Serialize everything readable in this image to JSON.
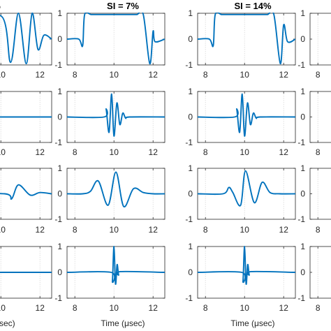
{
  "chart_data": {
    "type": "line",
    "layout": "4 rows x 4 columns of line plots (cropped at left and right)",
    "color": "#0072BD",
    "column_titles": [
      "%",
      "SI = 7%",
      "SI = 14%",
      ""
    ],
    "xlabel": "Time (μsec)",
    "xlabel_partial": "sec)",
    "xticks": [
      8,
      10,
      12
    ],
    "xlim": [
      7.6,
      12.6
    ],
    "yticks": [
      -1,
      0,
      1
    ],
    "ylim": [
      -1,
      1
    ],
    "grid": "vertical dotted lines at x ticks",
    "rows": [
      {
        "row": 1,
        "description": "long sinusoidal burst with unit amplitude",
        "panels": [
          {
            "column": "partial-left",
            "x": [
              8.0,
              10.0,
              10.5,
              10.9,
              11.3,
              11.6,
              11.9,
              12.2,
              12.6
            ],
            "y": [
              0,
              0.9,
              -0.9,
              1.0,
              -0.95,
              1.0,
              -0.4,
              0.15,
              0
            ]
          },
          {
            "column": "SI = 7%",
            "x": [
              7.6,
              8.2,
              8.4,
              8.5,
              8.83,
              9.17,
              9.5,
              9.83,
              10.17,
              10.5,
              10.83,
              11.17,
              11.5,
              11.83,
              12.0,
              12.1,
              12.6
            ],
            "y": [
              0,
              0,
              -0.25,
              0.95,
              0.95,
              0.95,
              0.95,
              0.95,
              0.95,
              0.95,
              0.95,
              0.95,
              0.95,
              -0.95,
              0.3,
              -0.1,
              0
            ]
          },
          {
            "column": "SI = 14%",
            "x": [
              7.6,
              8.2,
              8.4,
              8.5,
              8.83,
              9.17,
              9.5,
              9.83,
              10.17,
              10.5,
              10.83,
              11.17,
              11.5,
              11.83,
              12.0,
              12.2,
              12.6
            ],
            "y": [
              0,
              0,
              -0.25,
              0.95,
              0.95,
              0.95,
              0.95,
              0.95,
              0.95,
              0.95,
              0.95,
              0.95,
              0.95,
              -0.95,
              0.55,
              -0.1,
              0
            ]
          }
        ]
      },
      {
        "row": 2,
        "description": "short wavelet centred near 10 μsec",
        "panels": [
          {
            "column": "partial-left",
            "x": [
              7.6,
              12.6
            ],
            "y": [
              0,
              0
            ]
          },
          {
            "column": "SI = 7%",
            "x": [
              7.6,
              9.5,
              9.6,
              9.75,
              9.88,
              10.0,
              10.15,
              10.3,
              10.45,
              10.6,
              10.8,
              12.6
            ],
            "y": [
              0,
              0,
              0.3,
              -0.6,
              0.9,
              -0.75,
              0.55,
              -0.3,
              0.15,
              -0.05,
              0,
              0
            ]
          },
          {
            "column": "SI = 14%",
            "x": [
              7.6,
              9.5,
              9.6,
              9.75,
              9.88,
              10.0,
              10.15,
              10.3,
              10.45,
              10.6,
              10.8,
              12.6
            ],
            "y": [
              0,
              0,
              0.3,
              -0.6,
              0.9,
              -0.75,
              0.55,
              -0.3,
              0.15,
              -0.05,
              0,
              0
            ]
          }
        ]
      },
      {
        "row": 3,
        "description": "broad low-frequency pulse",
        "panels": [
          {
            "column": "partial-left",
            "x": [
              7.6,
              10.2,
              10.55,
              10.9,
              11.5,
              12.0,
              12.6
            ],
            "y": [
              0,
              0,
              -0.2,
              0.35,
              -0.05,
              0.05,
              0
            ]
          },
          {
            "column": "SI = 7%",
            "x": [
              7.6,
              8.4,
              8.8,
              9.2,
              9.7,
              10.1,
              10.5,
              11.0,
              11.5,
              12.0,
              12.6
            ],
            "y": [
              0,
              0,
              0.1,
              0.5,
              -0.45,
              0.85,
              -0.5,
              0.2,
              0.05,
              0,
              0
            ]
          },
          {
            "column": "SI = 14%",
            "x": [
              7.6,
              8.9,
              9.2,
              9.4,
              9.8,
              10.05,
              10.5,
              10.9,
              11.3,
              11.8,
              12.6
            ],
            "y": [
              0,
              0,
              0.25,
              0.05,
              -0.45,
              0.9,
              -0.35,
              0.45,
              0.05,
              0,
              0
            ]
          }
        ]
      },
      {
        "row": 4,
        "description": "sharp impulse at 10 μsec",
        "panels": [
          {
            "column": "partial-left",
            "x": [
              7.6,
              12.6
            ],
            "y": [
              0,
              0
            ]
          },
          {
            "column": "SI = 7%",
            "x": [
              7.6,
              9.85,
              9.92,
              10.0,
              10.08,
              10.16,
              10.24,
              10.35,
              12.6
            ],
            "y": [
              0,
              0,
              -0.35,
              1.0,
              -0.45,
              0.3,
              -0.1,
              0.03,
              0
            ]
          },
          {
            "column": "SI = 14%",
            "x": [
              7.6,
              9.85,
              9.92,
              10.0,
              10.08,
              10.16,
              10.24,
              10.35,
              12.6
            ],
            "y": [
              0,
              0,
              -0.35,
              1.0,
              -0.45,
              0.3,
              -0.1,
              0.03,
              0
            ]
          }
        ]
      }
    ]
  }
}
